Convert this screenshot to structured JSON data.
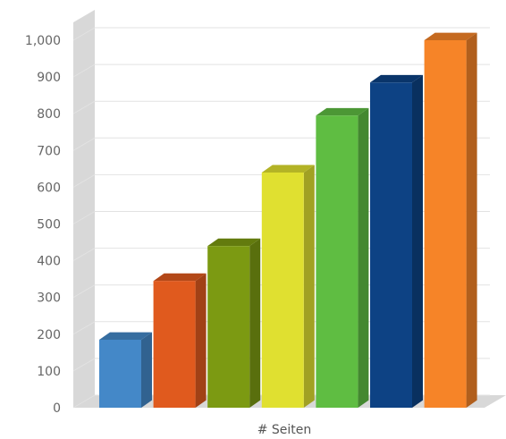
{
  "chart_data": {
    "type": "bar",
    "style": "3d-column",
    "xlabel": "# Seiten",
    "ylabel": "",
    "ylim": [
      0,
      1000
    ],
    "yticks": [
      "0",
      "100",
      "200",
      "300",
      "400",
      "500",
      "600",
      "700",
      "800",
      "900",
      "1,000"
    ],
    "grid": true,
    "legend": "none",
    "series": [
      {
        "values": [
          185,
          345,
          440,
          640,
          795,
          885,
          1000
        ]
      }
    ],
    "colors": [
      "#4488c8",
      "#e05a1e",
      "#7c9a12",
      "#e0e030",
      "#5fbd42",
      "#0d4284",
      "#f68428"
    ]
  }
}
